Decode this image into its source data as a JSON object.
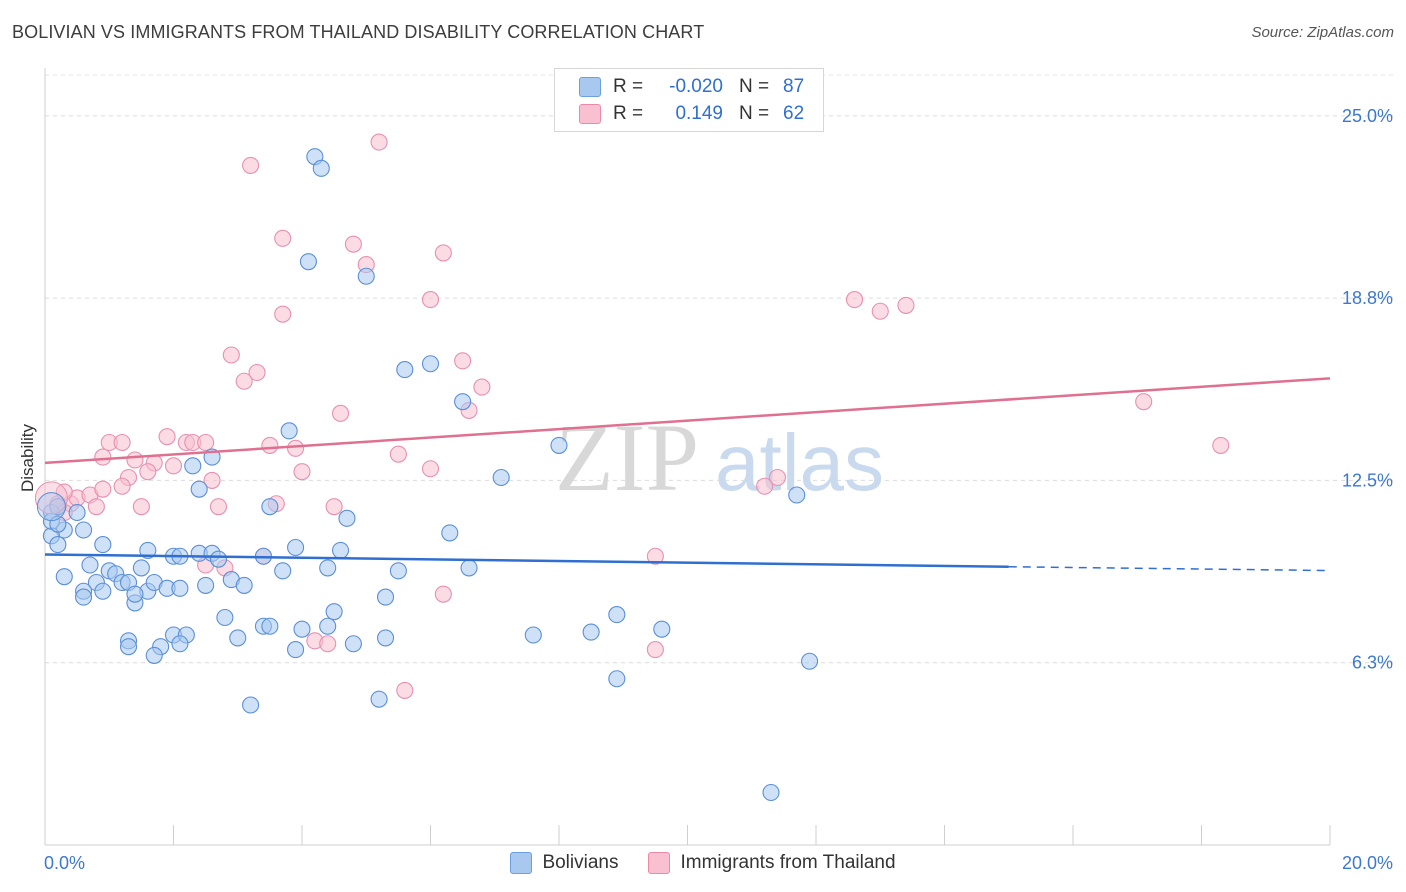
{
  "header": {
    "title": "BOLIVIAN VS IMMIGRANTS FROM THAILAND DISABILITY CORRELATION CHART",
    "source": "Source: ZipAtlas.com"
  },
  "legend_top": {
    "rows": [
      {
        "r_label": "R =",
        "r_value": "-0.020",
        "n_label": "N =",
        "n_value": "87",
        "color": "#a8c8f0",
        "border": "#6a9fe0"
      },
      {
        "r_label": "R =",
        "r_value": "0.149",
        "n_label": "N =",
        "n_value": "62",
        "color": "#f8c0d0",
        "border": "#e88aa8"
      }
    ]
  },
  "legend_bottom": {
    "items": [
      {
        "label": "Bolivians",
        "color": "#a8c8f0"
      },
      {
        "label": "Immigrants from Thailand",
        "color": "#f8c0d0"
      }
    ]
  },
  "chart_data": {
    "type": "scatter",
    "ylabel": "Disability",
    "x_ticks": [
      "0.0%",
      "20.0%"
    ],
    "y_ticks": [
      "25.0%",
      "18.8%",
      "12.5%",
      "6.3%"
    ],
    "xlim": [
      0,
      20
    ],
    "ylim": [
      0,
      26.4
    ],
    "watermark": "ZIPatlas",
    "colors": {
      "blue_fill": "#a8c8f0",
      "blue_stroke": "#5b8fd8",
      "blue_line": "#2f6fd0",
      "pink_fill": "#f8c0d0",
      "pink_stroke": "#e890b0",
      "pink_line": "#e07090",
      "tick_label": "#3b78d0"
    },
    "series": [
      {
        "name": "Bolivians",
        "trend": {
          "x": [
            0,
            15
          ],
          "y": [
            9.96,
            9.54
          ],
          "dashed_to": [
            20.0,
            9.41
          ]
        },
        "points": [
          [
            4.2,
            23.6
          ],
          [
            4.3,
            23.2
          ],
          [
            4.1,
            20.0
          ],
          [
            5.0,
            19.5
          ],
          [
            5.6,
            16.3
          ],
          [
            6.0,
            16.5
          ],
          [
            6.5,
            15.2
          ],
          [
            3.8,
            14.2
          ],
          [
            8.0,
            13.7
          ],
          [
            2.6,
            13.3
          ],
          [
            2.3,
            13.0
          ],
          [
            7.1,
            12.6
          ],
          [
            2.4,
            12.2
          ],
          [
            3.5,
            11.6
          ],
          [
            11.7,
            12.0
          ],
          [
            0.1,
            11.4
          ],
          [
            0.2,
            11.6
          ],
          [
            0.5,
            11.4
          ],
          [
            0.3,
            10.8
          ],
          [
            0.6,
            10.8
          ],
          [
            0.1,
            10.6
          ],
          [
            4.7,
            11.2
          ],
          [
            6.3,
            10.7
          ],
          [
            0.2,
            10.3
          ],
          [
            0.9,
            10.3
          ],
          [
            1.6,
            10.1
          ],
          [
            2.0,
            9.9
          ],
          [
            2.4,
            10.0
          ],
          [
            2.6,
            10.0
          ],
          [
            2.7,
            9.8
          ],
          [
            3.9,
            10.2
          ],
          [
            4.6,
            10.1
          ],
          [
            3.4,
            9.9
          ],
          [
            0.7,
            9.6
          ],
          [
            1.0,
            9.4
          ],
          [
            1.1,
            9.3
          ],
          [
            1.2,
            9.0
          ],
          [
            1.3,
            9.0
          ],
          [
            0.8,
            9.0
          ],
          [
            0.9,
            8.7
          ],
          [
            0.6,
            8.7
          ],
          [
            1.6,
            8.7
          ],
          [
            1.7,
            9.0
          ],
          [
            1.9,
            8.8
          ],
          [
            2.1,
            8.8
          ],
          [
            2.5,
            8.9
          ],
          [
            2.9,
            9.1
          ],
          [
            3.1,
            8.9
          ],
          [
            3.7,
            9.4
          ],
          [
            4.4,
            9.5
          ],
          [
            5.5,
            9.4
          ],
          [
            5.3,
            8.5
          ],
          [
            0.6,
            8.5
          ],
          [
            1.4,
            8.3
          ],
          [
            1.4,
            8.6
          ],
          [
            4.5,
            8.0
          ],
          [
            2.8,
            7.8
          ],
          [
            3.4,
            7.5
          ],
          [
            3.5,
            7.5
          ],
          [
            4.0,
            7.4
          ],
          [
            4.4,
            7.5
          ],
          [
            8.9,
            7.9
          ],
          [
            9.6,
            7.4
          ],
          [
            7.6,
            7.2
          ],
          [
            8.5,
            7.3
          ],
          [
            2.0,
            7.2
          ],
          [
            2.2,
            7.2
          ],
          [
            1.3,
            7.0
          ],
          [
            3.0,
            7.1
          ],
          [
            5.3,
            7.1
          ],
          [
            4.8,
            6.9
          ],
          [
            1.3,
            6.8
          ],
          [
            1.8,
            6.8
          ],
          [
            2.1,
            6.9
          ],
          [
            3.9,
            6.7
          ],
          [
            1.7,
            6.5
          ],
          [
            8.9,
            5.7
          ],
          [
            11.9,
            6.3
          ],
          [
            5.2,
            5.0
          ],
          [
            3.2,
            4.8
          ],
          [
            11.3,
            1.8
          ],
          [
            0.1,
            11.1
          ],
          [
            0.2,
            11.0
          ],
          [
            2.1,
            9.9
          ],
          [
            6.6,
            9.5
          ],
          [
            0.3,
            9.2
          ],
          [
            1.5,
            9.5
          ]
        ]
      },
      {
        "name": "Immigrants from Thailand",
        "trend": {
          "x": [
            0,
            20
          ],
          "y": [
            13.1,
            16.0
          ]
        },
        "points": [
          [
            5.2,
            24.1
          ],
          [
            3.2,
            23.3
          ],
          [
            3.7,
            20.8
          ],
          [
            4.8,
            20.6
          ],
          [
            6.2,
            20.3
          ],
          [
            5.0,
            19.9
          ],
          [
            6.0,
            18.7
          ],
          [
            3.7,
            18.2
          ],
          [
            12.6,
            18.7
          ],
          [
            13.0,
            18.3
          ],
          [
            13.4,
            18.5
          ],
          [
            2.9,
            16.8
          ],
          [
            6.5,
            16.6
          ],
          [
            3.3,
            16.2
          ],
          [
            3.1,
            15.9
          ],
          [
            6.8,
            15.7
          ],
          [
            17.1,
            15.2
          ],
          [
            4.6,
            14.8
          ],
          [
            6.6,
            14.9
          ],
          [
            1.0,
            13.8
          ],
          [
            1.2,
            13.8
          ],
          [
            1.9,
            14.0
          ],
          [
            2.2,
            13.8
          ],
          [
            2.3,
            13.8
          ],
          [
            2.5,
            13.8
          ],
          [
            3.5,
            13.7
          ],
          [
            3.9,
            13.6
          ],
          [
            18.3,
            13.7
          ],
          [
            0.9,
            13.3
          ],
          [
            1.4,
            13.2
          ],
          [
            1.7,
            13.1
          ],
          [
            2.0,
            13.0
          ],
          [
            5.5,
            13.4
          ],
          [
            4.0,
            12.8
          ],
          [
            6.0,
            12.9
          ],
          [
            1.3,
            12.6
          ],
          [
            1.6,
            12.8
          ],
          [
            2.6,
            12.5
          ],
          [
            11.4,
            12.6
          ],
          [
            11.2,
            12.3
          ],
          [
            1.2,
            12.3
          ],
          [
            0.2,
            11.7
          ],
          [
            0.4,
            11.7
          ],
          [
            0.3,
            11.4
          ],
          [
            0.5,
            11.9
          ],
          [
            0.7,
            12.0
          ],
          [
            0.8,
            11.6
          ],
          [
            0.9,
            12.2
          ],
          [
            1.5,
            11.6
          ],
          [
            2.7,
            11.6
          ],
          [
            3.6,
            11.7
          ],
          [
            4.5,
            11.6
          ],
          [
            0.3,
            12.1
          ],
          [
            9.5,
            9.9
          ],
          [
            2.5,
            9.6
          ],
          [
            2.8,
            9.5
          ],
          [
            3.4,
            9.9
          ],
          [
            6.2,
            8.6
          ],
          [
            4.2,
            7.0
          ],
          [
            4.4,
            6.9
          ],
          [
            9.5,
            6.7
          ],
          [
            5.6,
            5.3
          ]
        ]
      }
    ]
  }
}
